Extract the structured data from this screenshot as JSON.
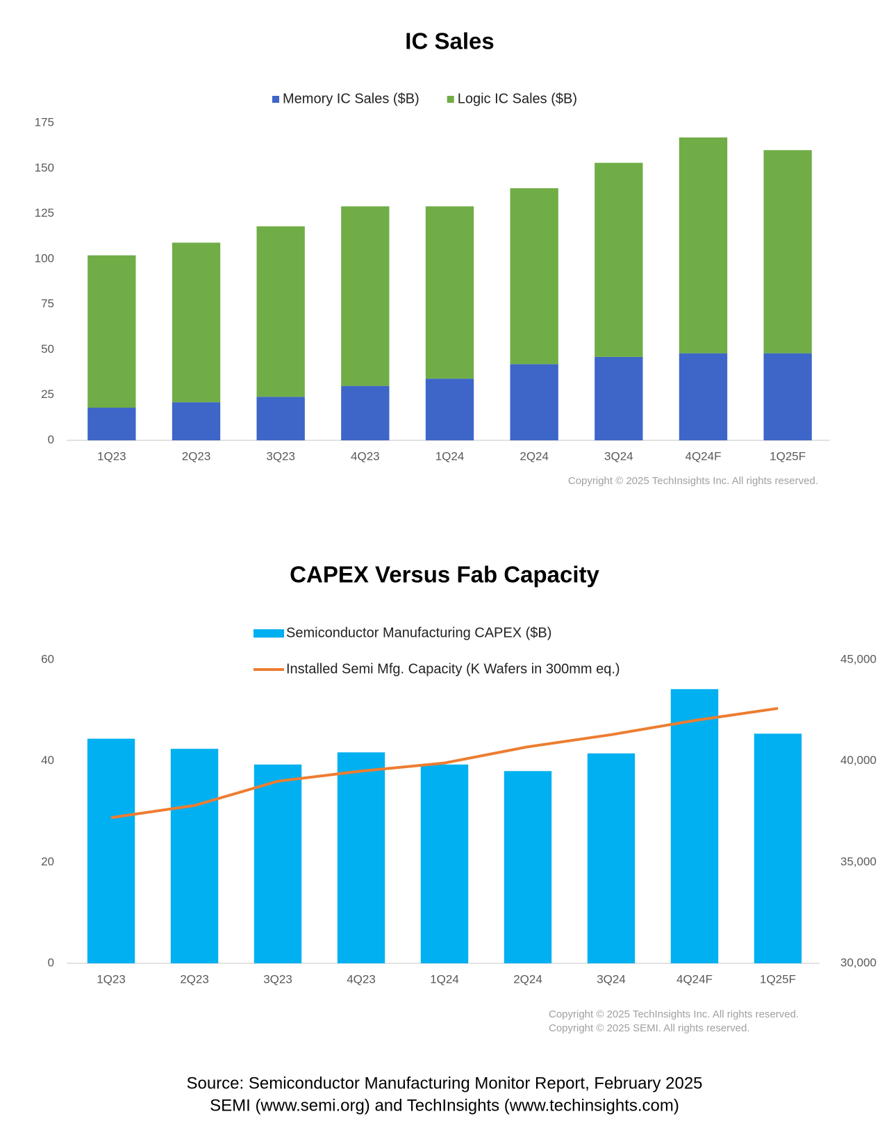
{
  "chart_data": [
    {
      "type": "bar",
      "stacked": true,
      "title": "IC Sales",
      "categories": [
        "1Q23",
        "2Q23",
        "3Q23",
        "4Q23",
        "1Q24",
        "2Q24",
        "3Q24",
        "4Q24F",
        "1Q25F"
      ],
      "series": [
        {
          "name": "Memory IC Sales ($B)",
          "color": "#3d66c8",
          "values": [
            18,
            21,
            24,
            30,
            34,
            42,
            46,
            48,
            48
          ]
        },
        {
          "name": "Logic IC Sales ($B)",
          "color": "#70ad47",
          "values": [
            84,
            88,
            94,
            99,
            95,
            97,
            107,
            119,
            112
          ]
        }
      ],
      "ylim": [
        0,
        175
      ],
      "yticks": [
        0,
        25,
        50,
        75,
        100,
        125,
        150,
        175
      ],
      "grid": false,
      "legend": "top",
      "annotations": [
        "Copyright © 2025 TechInsights Inc.  All rights reserved."
      ]
    },
    {
      "type": "combo",
      "title": "CAPEX Versus Fab Capacity",
      "categories": [
        "1Q23",
        "2Q23",
        "3Q23",
        "4Q23",
        "1Q24",
        "2Q24",
        "3Q24",
        "4Q24F",
        "1Q25F"
      ],
      "series": [
        {
          "name": "Semiconductor Manufacturing CAPEX ($B)",
          "type": "bar",
          "color": "#00b0f0",
          "values": [
            44.4,
            42.4,
            39.3,
            41.7,
            39.3,
            38,
            41.5,
            54.2,
            45.4
          ]
        },
        {
          "name": "Installed Semi Mfg. Capacity (K Wafers in 300mm eq.)",
          "type": "line",
          "axis": "y2",
          "color": "#ed7d31",
          "values": [
            37200,
            37800,
            39000,
            39500,
            39900,
            40700,
            41300,
            42000,
            42600
          ]
        }
      ],
      "ylim": [
        0,
        60
      ],
      "yticks": [
        0,
        20,
        40,
        60
      ],
      "y2lim": [
        30000,
        45000
      ],
      "y2ticks": [
        {
          "value": 30000,
          "label": "30,000"
        },
        {
          "value": 35000,
          "label": "35,000"
        },
        {
          "value": 40000,
          "label": "40,000"
        },
        {
          "value": 45000,
          "label": "45,000"
        }
      ],
      "grid": false,
      "legend": "top",
      "annotations": [
        "Copyright © 2025 TechInsights Inc.  All rights reserved.",
        "Copyright © 2025 SEMI.  All rights reserved."
      ]
    }
  ],
  "source": [
    "Source: Semiconductor Manufacturing Monitor Report, February 2025",
    "SEMI (www.semi.org) and TechInsights (www.techinsights.com)"
  ]
}
